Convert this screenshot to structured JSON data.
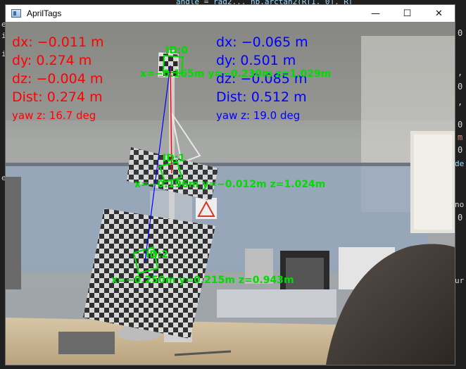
{
  "window": {
    "title": "AprilTags",
    "controls": {
      "minimize": "—",
      "maximize": "☐",
      "close": "✕"
    }
  },
  "editor_bg": {
    "top_text": "angle = rad2... np.arctan2(R[1, 0], R[",
    "left_glyphs": [
      "e",
      "i",
      "i",
      "e"
    ],
    "right_glyphs": [
      {
        "text": "0",
        "color": "#d4d4d4"
      },
      {
        "text": ",",
        "color": "#d4d4d4"
      },
      {
        "text": "0",
        "color": "#d4d4d4"
      },
      {
        "text": ",",
        "color": "#d4d4d4"
      },
      {
        "text": "0",
        "color": "#d4d4d4"
      },
      {
        "text": "m",
        "color": "#ce9178"
      },
      {
        "text": "0",
        "color": "#d4d4d4"
      },
      {
        "text": "de",
        "color": "#9cdcfe"
      },
      {
        "text": "no",
        "color": "#d4d4d4"
      },
      {
        "text": "0",
        "color": "#d4d4d4"
      },
      {
        "text": "ur",
        "color": "#d4d4d4"
      }
    ]
  },
  "overlay": {
    "left_pose": {
      "color": "#ff0000",
      "dx": "dx: −0.011 m",
      "dy": "dy: 0.274 m",
      "dz": "dz: −0.004 m",
      "dist": "Dist: 0.274 m",
      "yaw": "yaw z: 16.7 deg"
    },
    "right_pose": {
      "color": "#0000ff",
      "dx": "dx: −0.065 m",
      "dy": "dy: 0.501 m",
      "dz": "dz: −0.085 m",
      "dist": "Dist: 0.512 m",
      "yaw": "yaw z: 19.0 deg"
    },
    "tags": [
      {
        "id_label": "ID:0",
        "coords": "x=−0.165m y=−0.230m z=1.029m"
      },
      {
        "id_label": "ID:1",
        "coords": "x=−0.196m y=−0.012m z=1.024m"
      },
      {
        "id_label": "ID:2",
        "coords": "x=−0.250m y=0.215m z=0.943m"
      }
    ]
  },
  "colors": {
    "detection": "#00dc00",
    "line_red": "#ff0000",
    "line_blue": "#0000ff"
  }
}
